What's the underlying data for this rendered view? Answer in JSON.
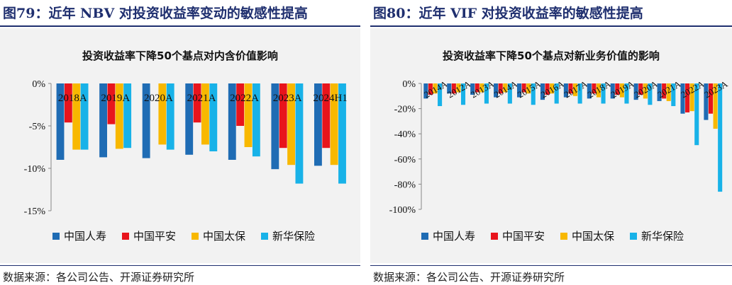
{
  "left": {
    "fig_title": "图79：近年 NBV 对投资收益率变动的敏感性提高",
    "source": "数据来源：各公司公告、开源证券研究所",
    "chart_data": {
      "type": "bar",
      "title": "投资收益率下降50个基点对内含价值影响",
      "categories": [
        "2018A",
        "2019A",
        "2020A",
        "2021A",
        "2022A",
        "2023A",
        "2024H1"
      ],
      "y_ticks": [
        "0%",
        "-5%",
        "-10%",
        "-15%"
      ],
      "ylim": [
        -15,
        0
      ],
      "series": [
        {
          "name": "中国人寿",
          "color": "#1f6cb4",
          "values": [
            -9.0,
            -8.7,
            -8.8,
            -8.4,
            -9.0,
            -10.1,
            -9.7
          ]
        },
        {
          "name": "中国平安",
          "color": "#e8141c",
          "values": [
            -4.6,
            -4.8,
            null,
            -4.6,
            -5.0,
            -7.6,
            -7.6
          ]
        },
        {
          "name": "中国太保",
          "color": "#f8b800",
          "values": [
            -7.8,
            -7.7,
            -7.2,
            -7.2,
            -7.5,
            -9.6,
            -9.6
          ]
        },
        {
          "name": "新华保险",
          "color": "#18b2e8",
          "values": [
            -7.8,
            -7.6,
            -7.8,
            -8.0,
            -8.6,
            -11.8,
            -11.8
          ]
        }
      ]
    }
  },
  "right": {
    "fig_title": "图80：近年 VIF 对投资收益率的敏感性提高",
    "source": "数据来源：各公司公告、开源证券研究所",
    "chart_data": {
      "type": "bar",
      "title": "投资收益率下降50个基点对新业务价值的影响",
      "categories": [
        "2014A",
        "2012A",
        "2013A",
        "2014A",
        "2015A",
        "2016A",
        "2017A",
        "2018A",
        "2019A",
        "2020A",
        "2021A",
        "2022A",
        "2023A"
      ],
      "y_ticks": [
        "0%",
        "-20%",
        "-40%",
        "-60%",
        "-80%",
        "-100%"
      ],
      "ylim": [
        -100,
        0
      ],
      "series": [
        {
          "name": "中国人寿",
          "color": "#1f6cb4",
          "values": [
            -12,
            -8,
            -9,
            -11,
            -11,
            -13,
            -11,
            -12,
            -12,
            -13,
            -14,
            -24,
            -29
          ]
        },
        {
          "name": "中国平安",
          "color": "#e8141c",
          "values": [
            -9,
            -8,
            -7,
            -8,
            -7,
            -9,
            -8,
            -8,
            -9,
            -9,
            -12,
            -23,
            -24
          ]
        },
        {
          "name": "中国太保",
          "color": "#f8b800",
          "values": [
            -8,
            -7,
            -7,
            -7,
            -8,
            -8,
            -10,
            -11,
            -11,
            -12,
            -14,
            -22,
            -36
          ]
        },
        {
          "name": "新华保险",
          "color": "#18b2e8",
          "values": [
            -18,
            -17,
            -16,
            -16,
            -17,
            -16,
            -16,
            -16,
            -16,
            -17,
            -18,
            -49,
            -86
          ]
        }
      ]
    }
  }
}
